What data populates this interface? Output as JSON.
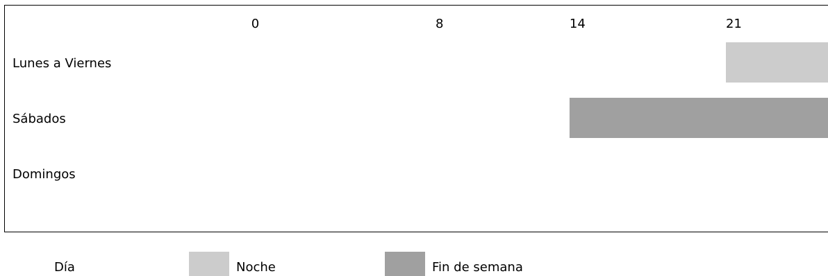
{
  "chart_data": {
    "type": "bar",
    "subtype": "gantt",
    "title": "",
    "xlabel": "",
    "ylabel": "",
    "x_ticks": [
      0,
      8,
      14,
      21
    ],
    "categories": [
      "Lunes a Viernes",
      "Sábados",
      "Domingos"
    ],
    "series": [
      {
        "name": "Día",
        "color": "#ffffff",
        "bars": []
      },
      {
        "name": "Noche",
        "color": "#cccccc",
        "bars": [
          {
            "category": "Lunes a Viernes",
            "start": 21,
            "end": 26
          }
        ]
      },
      {
        "name": "Fin de semana",
        "color": "#a0a0a0",
        "bars": [
          {
            "category": "Sábados",
            "start": 14,
            "end": 26
          }
        ]
      }
    ],
    "grid": false,
    "legend_position": "bottom"
  }
}
